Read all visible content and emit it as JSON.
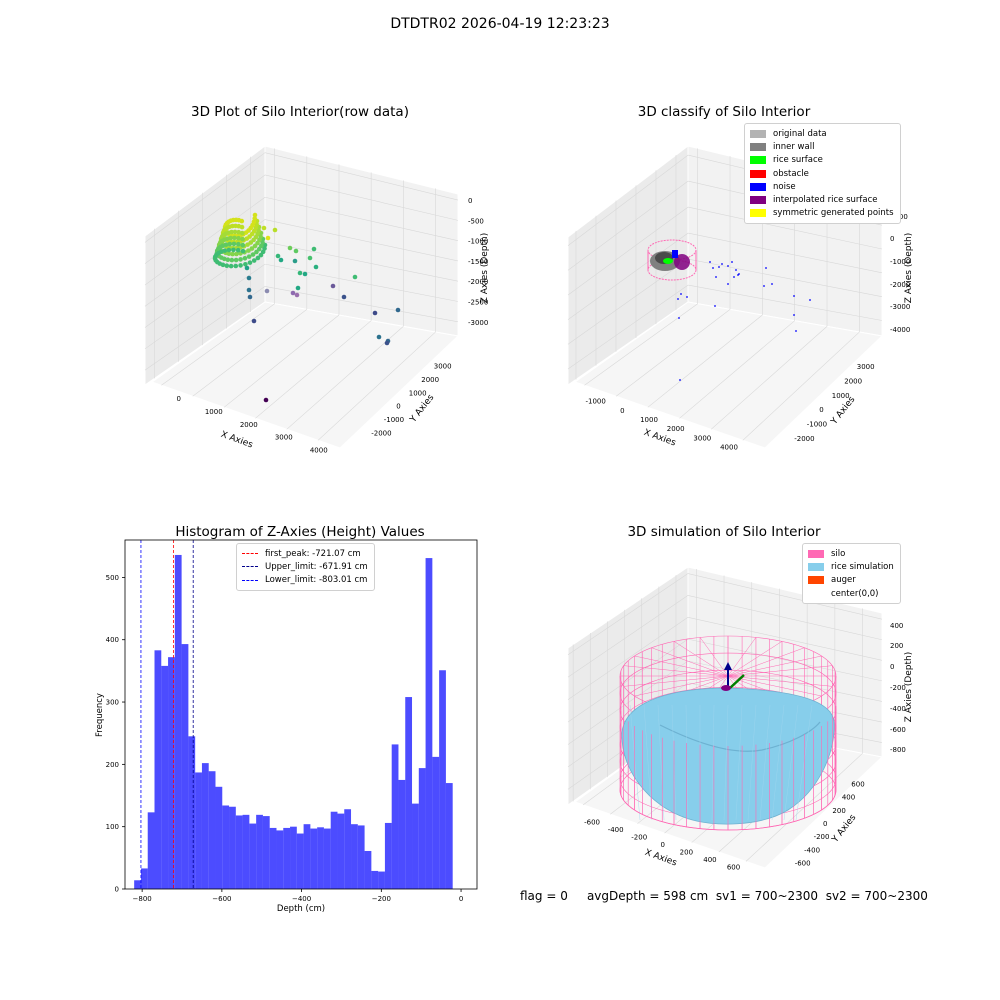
{
  "suptitle": "DTDTR02 2026-04-19 12:23:23",
  "panel1": {
    "title": "3D Plot of Silo Interior(row data)",
    "xlabel": "X Axies",
    "ylabel": "Y Axies",
    "zlabel": "Z Axies (Depth)",
    "xticks": [
      "0",
      "1000",
      "2000",
      "3000",
      "4000"
    ],
    "yticks": [
      "-2000",
      "-1000",
      "0",
      "1000",
      "2000",
      "3000"
    ],
    "zticks": [
      "0",
      "-500",
      "-1000",
      "-1500",
      "-2000",
      "-2500",
      "-3000"
    ]
  },
  "panel2": {
    "title": "3D classify of Silo Interior",
    "xlabel": "X Axies",
    "ylabel": "Y Axies",
    "zlabel": "Z Axies (Depth)",
    "xticks": [
      "-1000",
      "0",
      "1000",
      "2000",
      "3000",
      "4000"
    ],
    "yticks": [
      "-2000",
      "-1000",
      "0",
      "1000",
      "2000",
      "3000"
    ],
    "zticks": [
      "1000",
      "0",
      "-1000",
      "-2000",
      "-3000",
      "-4000"
    ],
    "legend": [
      {
        "label": "original data",
        "color": "#b3b3b3"
      },
      {
        "label": "inner wall",
        "color": "#808080"
      },
      {
        "label": "rice surface",
        "color": "#00ff00"
      },
      {
        "label": "obstacle",
        "color": "#ff0000"
      },
      {
        "label": "noise",
        "color": "#0000ff"
      },
      {
        "label": "interpolated rice surface",
        "color": "#800080"
      },
      {
        "label": "symmetric generated points",
        "color": "#ffff00"
      }
    ]
  },
  "panel3": {
    "title": "Histogram of Z-Axies (Height) Values",
    "xlabel": "Depth (cm)",
    "ylabel": "Frequency",
    "legend": [
      {
        "label": "first_peak: -721.07 cm",
        "color": "#ff0000"
      },
      {
        "label": "Upper_limit: -671.91 cm",
        "color": "#00008b"
      },
      {
        "label": "Lower_limit: -803.01 cm",
        "color": "#0000ff"
      }
    ]
  },
  "panel4": {
    "title": "3D simulation of Silo Interior",
    "xlabel": "X Axies",
    "ylabel": "Y Axies",
    "zlabel": "Z Axies (Depth)",
    "xticks": [
      "-600",
      "-400",
      "-200",
      "0",
      "200",
      "400",
      "600"
    ],
    "yticks": [
      "-600",
      "-400",
      "-200",
      "0",
      "200",
      "400",
      "600"
    ],
    "zticks": [
      "400",
      "200",
      "0",
      "-200",
      "-400",
      "-600",
      "-800"
    ],
    "legend": [
      {
        "label": "silo",
        "color": "#ff69b4"
      },
      {
        "label": "rice simulation",
        "color": "#87ceeb"
      },
      {
        "label": "auger",
        "color": "#ff4500"
      },
      {
        "label": "center(0,0)",
        "color": "#ffffff"
      }
    ]
  },
  "status": {
    "flag": "flag = 0",
    "avg": "avgDepth = 598 cm",
    "sv1": "sv1 = 700~2300",
    "sv2": "sv2 = 700~2300"
  },
  "chart_data": [
    {
      "type": "scatter",
      "title": "3D Plot of Silo Interior(row data)",
      "xlabel": "X Axies",
      "ylabel": "Y Axies",
      "zlabel": "Z Axies (Depth)",
      "xlim": [
        -600,
        4200
      ],
      "ylim": [
        -2300,
        3300
      ],
      "zlim": [
        -3300,
        100
      ]
    },
    {
      "type": "scatter",
      "title": "3D classify of Silo Interior",
      "xlabel": "X Axies",
      "ylabel": "Y Axies",
      "zlabel": "Z Axies (Depth)",
      "legend_loc": "upper right",
      "series": [
        {
          "name": "original data"
        },
        {
          "name": "inner wall"
        },
        {
          "name": "rice surface"
        },
        {
          "name": "obstacle"
        },
        {
          "name": "noise"
        },
        {
          "name": "interpolated rice surface"
        },
        {
          "name": "symmetric generated points"
        }
      ]
    },
    {
      "type": "bar",
      "title": "Histogram of Z-Axies (Height) Values",
      "xlabel": "Depth (cm)",
      "ylabel": "Frequency",
      "xlim": [
        -843,
        40
      ],
      "ylim": [
        0,
        560
      ],
      "xticks": [
        -800,
        -600,
        -400,
        -200,
        0
      ],
      "yticks": [
        0,
        100,
        200,
        300,
        400,
        500
      ],
      "bin_start": -820,
      "bin_width": 17,
      "values": [
        14,
        33,
        123,
        383,
        358,
        372,
        536,
        393,
        245,
        187,
        202,
        189,
        164,
        134,
        132,
        118,
        119,
        105,
        119,
        117,
        98,
        94,
        98,
        100,
        89,
        104,
        97,
        99,
        97,
        124,
        121,
        128,
        104,
        102,
        61,
        29,
        28,
        106,
        232,
        175,
        308,
        137,
        194,
        531,
        212,
        351,
        170
      ],
      "vlines": [
        {
          "label": "first_peak: -721.07 cm",
          "x": -721.07,
          "color": "#ff0000"
        },
        {
          "label": "Upper_limit: -671.91 cm",
          "x": -671.91,
          "color": "#00008b"
        },
        {
          "label": "Lower_limit: -803.01 cm",
          "x": -803.01,
          "color": "#0000ff"
        }
      ],
      "legend_loc": "upper center"
    },
    {
      "type": "surface",
      "title": "3D simulation of Silo Interior",
      "xlabel": "X Axies",
      "ylabel": "Y Axies",
      "zlabel": "Z Axies (Depth)",
      "series": [
        {
          "name": "silo"
        },
        {
          "name": "rice simulation"
        },
        {
          "name": "auger"
        },
        {
          "name": "center(0,0)"
        }
      ]
    }
  ]
}
